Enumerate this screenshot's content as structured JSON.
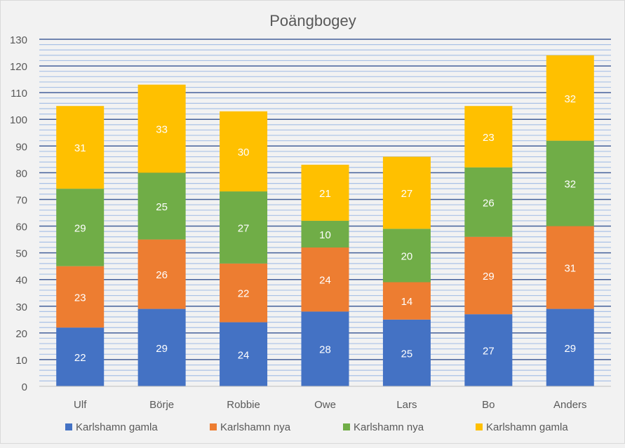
{
  "chart_data": {
    "type": "bar",
    "stacked": true,
    "title": "Poängbogey",
    "xlabel": "",
    "ylabel": "",
    "ylim": [
      0,
      130
    ],
    "major_tick_step": 10,
    "minor_grid_step": 2,
    "grid": true,
    "legend_position": "bottom",
    "categories": [
      "Ulf",
      "Börje",
      "Robbie",
      "Owe",
      "Lars",
      "Bo",
      "Anders"
    ],
    "yticks": [
      "0",
      "10",
      "20",
      "30",
      "40",
      "50",
      "60",
      "70",
      "80",
      "90",
      "100",
      "110",
      "120",
      "130"
    ],
    "series": [
      {
        "name": "Karlshamn gamla",
        "color": "#4472c4",
        "values": [
          22,
          29,
          24,
          28,
          25,
          27,
          29
        ]
      },
      {
        "name": "Karlshamn nya",
        "color": "#ed7d31",
        "values": [
          23,
          26,
          22,
          24,
          14,
          29,
          31
        ]
      },
      {
        "name": "Karlshamn nya",
        "color": "#70ad47",
        "values": [
          29,
          25,
          27,
          10,
          20,
          26,
          32
        ]
      },
      {
        "name": "Karlshamn gamla",
        "color": "#ffc000",
        "values": [
          31,
          33,
          30,
          21,
          27,
          23,
          32
        ]
      }
    ]
  }
}
